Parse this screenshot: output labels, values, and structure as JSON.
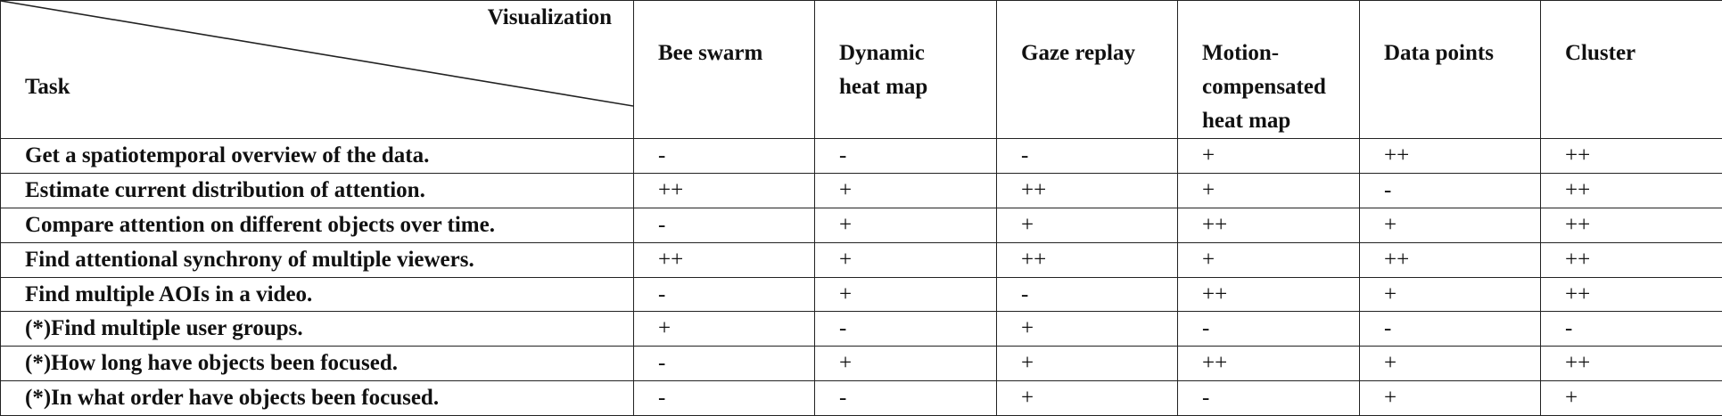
{
  "table": {
    "corner": {
      "column_axis_label": "Visualization",
      "row_axis_label": "Task"
    },
    "columns": [
      "Bee swarm",
      "Dynamic heat map",
      "Gaze replay",
      "Motion-compensated heat map",
      "Data points",
      "Cluster"
    ],
    "rows": [
      {
        "task": "Get a spatiotemporal overview of the data.",
        "values": [
          "-",
          "-",
          "-",
          "+",
          "++",
          "++"
        ]
      },
      {
        "task": "Estimate current distribution of attention.",
        "values": [
          "++",
          "+",
          "++",
          "+",
          "-",
          "++"
        ]
      },
      {
        "task": "Compare attention on different objects over time.",
        "values": [
          "-",
          "+",
          "+",
          "++",
          "+",
          "++"
        ]
      },
      {
        "task": "Find attentional synchrony of multiple viewers.",
        "values": [
          "++",
          "+",
          "++",
          "+",
          "++",
          "++"
        ]
      },
      {
        "task": "Find multiple AOIs in a video.",
        "values": [
          "-",
          "+",
          "-",
          "++",
          "+",
          "++"
        ]
      },
      {
        "task": "(*)Find multiple user groups.",
        "values": [
          "+",
          "-",
          "+",
          "-",
          "-",
          "-"
        ]
      },
      {
        "task": "(*)How long have objects been focused.",
        "values": [
          "-",
          "+",
          "+",
          "++",
          "+",
          "++"
        ]
      },
      {
        "task": "(*)In what order have objects been focused.",
        "values": [
          "-",
          "-",
          "+",
          "-",
          "+",
          "+"
        ]
      }
    ]
  }
}
